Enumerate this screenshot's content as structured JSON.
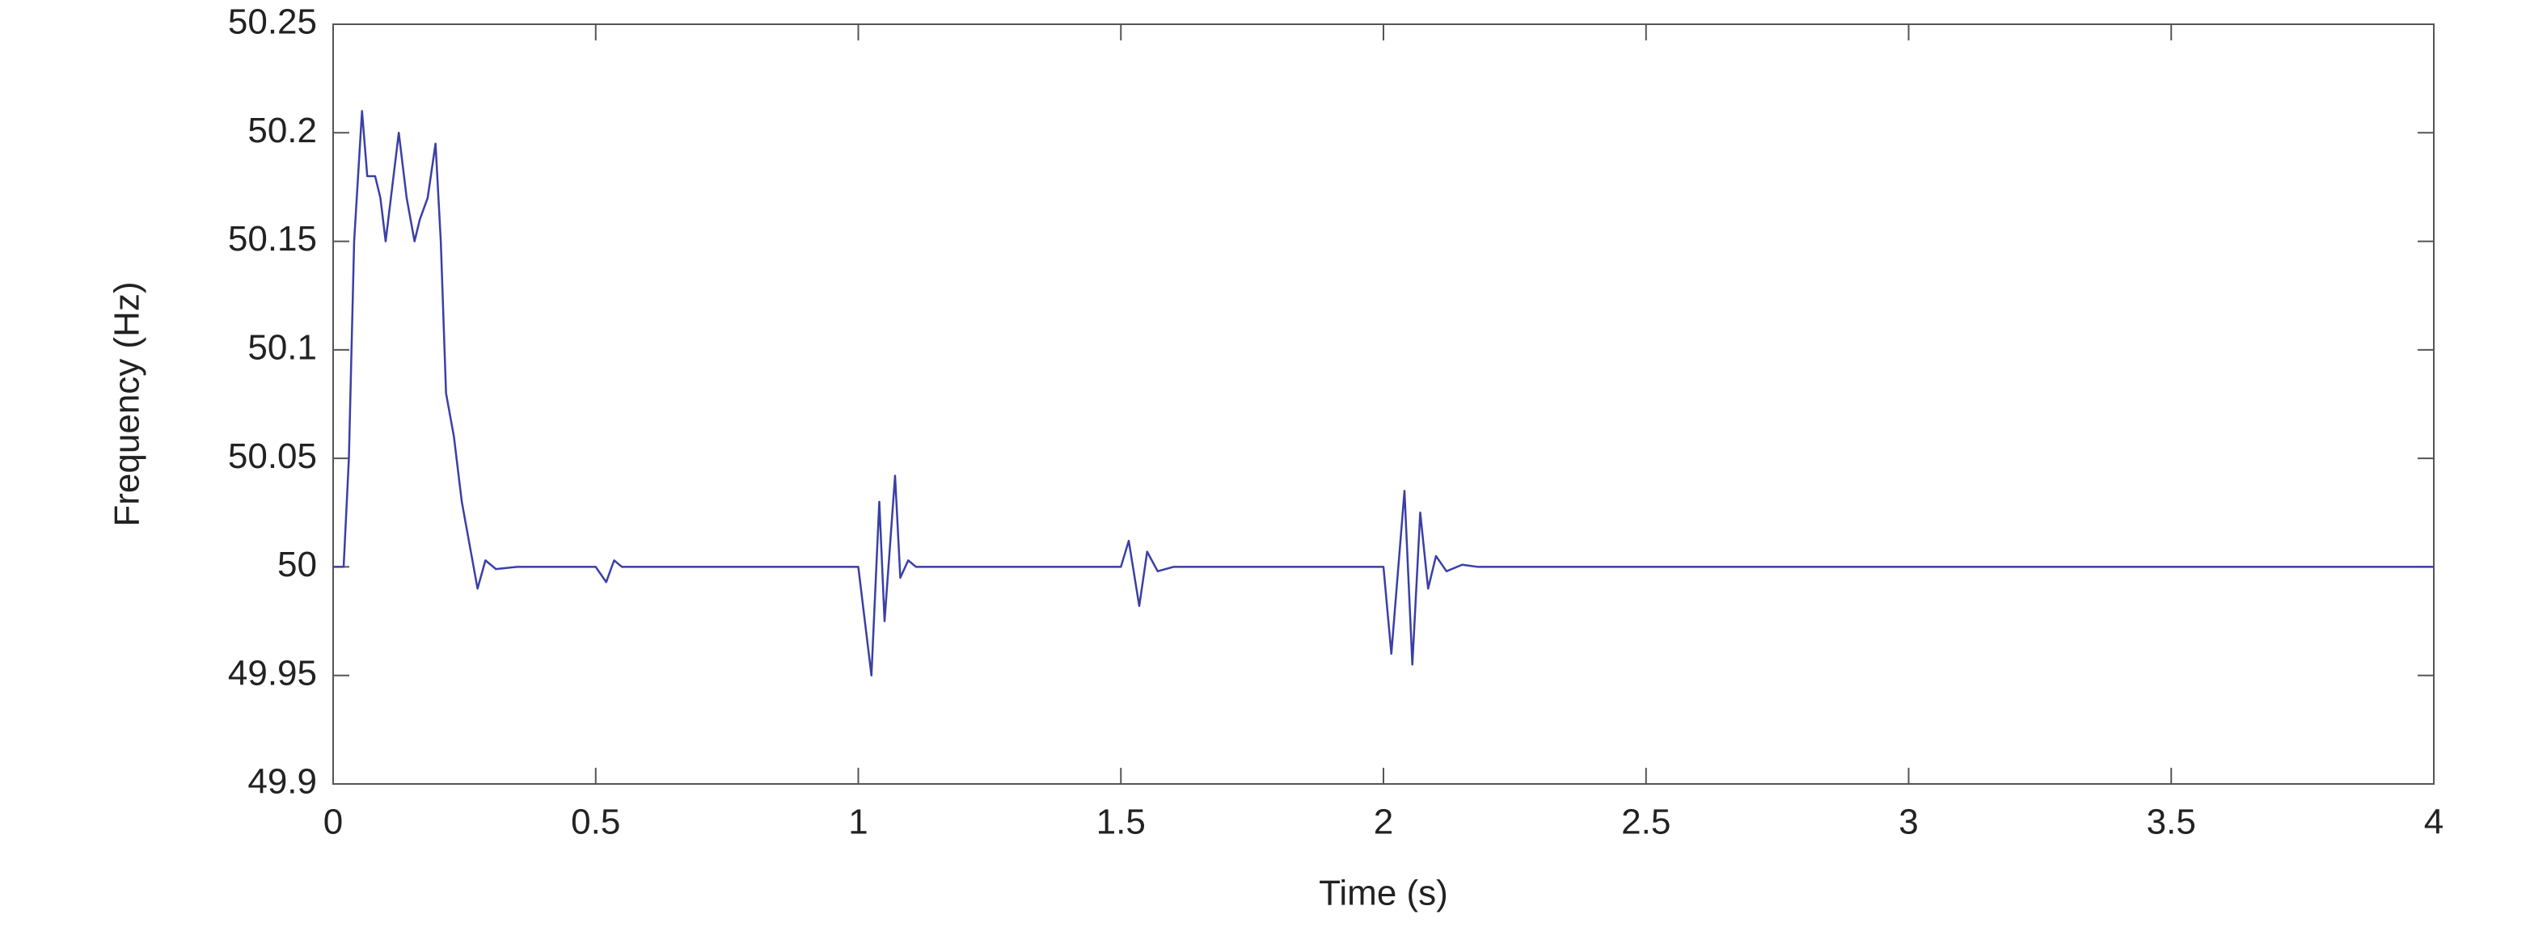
{
  "chart_data": {
    "type": "line",
    "xlabel": "Time (s)",
    "ylabel": "Frequency (Hz)",
    "x": [
      0,
      0.02,
      0.03,
      0.04,
      0.055,
      0.065,
      0.08,
      0.09,
      0.1,
      0.11,
      0.125,
      0.14,
      0.155,
      0.165,
      0.18,
      0.195,
      0.205,
      0.215,
      0.23,
      0.245,
      0.26,
      0.275,
      0.29,
      0.31,
      0.35,
      0.5,
      0.52,
      0.535,
      0.55,
      1.0,
      1.015,
      1.025,
      1.04,
      1.05,
      1.07,
      1.08,
      1.095,
      1.11,
      1.5,
      1.515,
      1.535,
      1.55,
      1.57,
      1.6,
      2.0,
      2.015,
      2.04,
      2.055,
      2.07,
      2.085,
      2.1,
      2.12,
      2.15,
      2.18,
      4
    ],
    "values": [
      50,
      50,
      50.05,
      50.15,
      50.21,
      50.18,
      50.18,
      50.17,
      50.15,
      50.17,
      50.2,
      50.17,
      50.15,
      50.16,
      50.17,
      50.195,
      50.15,
      50.08,
      50.06,
      50.03,
      50.01,
      49.99,
      50.003,
      49.999,
      50,
      50,
      49.993,
      50.003,
      50,
      50,
      49.97,
      49.95,
      50.03,
      49.975,
      50.042,
      49.995,
      50.003,
      50,
      50,
      50.012,
      49.982,
      50.007,
      49.998,
      50,
      50,
      49.96,
      50.035,
      49.955,
      50.025,
      49.99,
      50.005,
      49.998,
      50.001,
      50,
      50
    ],
    "color": "#3a3fa6",
    "xlim": [
      0,
      4
    ],
    "xticks": [
      0,
      0.5,
      1,
      1.5,
      2,
      2.5,
      3,
      3.5,
      4
    ],
    "ylim": [
      49.9,
      50.25
    ],
    "yticks": [
      49.9,
      49.95,
      50,
      50.05,
      50.1,
      50.15,
      50.2,
      50.25
    ]
  }
}
